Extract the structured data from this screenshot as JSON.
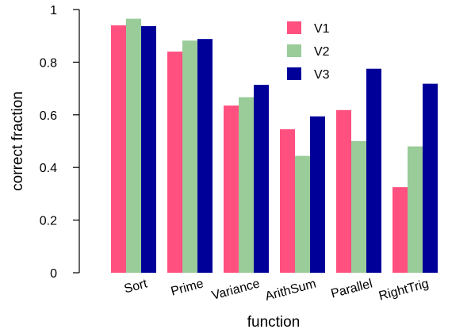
{
  "chart_data": {
    "type": "bar",
    "title": "",
    "xlabel": "function",
    "ylabel": "correct fraction",
    "ylim": [
      0,
      1
    ],
    "yticks": [
      0,
      0.2,
      0.4,
      0.6,
      0.8,
      1
    ],
    "ytick_labels": [
      "0",
      "0.2",
      "0.4",
      "0.6",
      "0.8",
      "1"
    ],
    "categories": [
      "Sort",
      "Prime",
      "Variance",
      "ArithSum",
      "Parallel",
      "RightTrig"
    ],
    "series": [
      {
        "name": "V1",
        "color": "#ff5080",
        "values": [
          0.94,
          0.84,
          0.635,
          0.545,
          0.618,
          0.325
        ]
      },
      {
        "name": "V2",
        "color": "#99cc99",
        "values": [
          0.965,
          0.882,
          0.667,
          0.444,
          0.5,
          0.48
        ]
      },
      {
        "name": "V3",
        "color": "#000099",
        "values": [
          0.937,
          0.888,
          0.714,
          0.594,
          0.775,
          0.718
        ]
      }
    ],
    "grid": false,
    "legend_position": "top-right"
  }
}
